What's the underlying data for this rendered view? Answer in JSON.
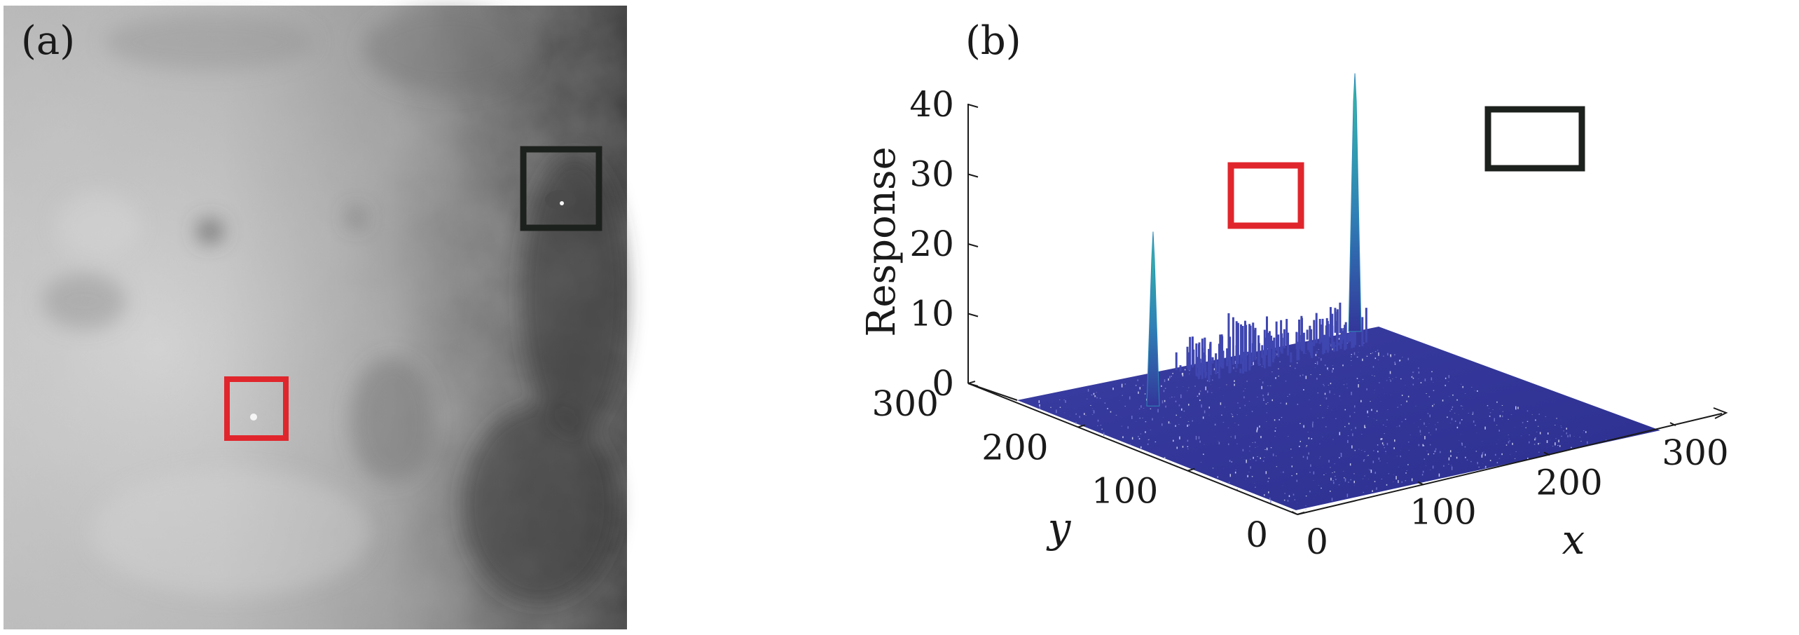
{
  "panels": {
    "a": {
      "label": "(a)"
    },
    "b": {
      "label": "(b)"
    }
  },
  "colors": {
    "red_box": "#e0262c",
    "black_box": "#1d211d",
    "surface": "#33369a",
    "peak": "#2fb5a6"
  },
  "chart_data": {
    "type": "surface",
    "title": "",
    "xlabel": "x",
    "ylabel": "y",
    "zlabel": "Response",
    "xlim": [
      0,
      300
    ],
    "ylim": [
      0,
      300
    ],
    "zlim": [
      0,
      40
    ],
    "x_ticks": [
      "0",
      "100",
      "200",
      "300"
    ],
    "y_ticks": [
      "0",
      "100",
      "200",
      "300"
    ],
    "z_ticks": [
      "0",
      "10",
      "20",
      "30",
      "40"
    ],
    "peaks": [
      {
        "marker": "red",
        "x": 64,
        "y": 205,
        "z": 25
      },
      {
        "marker": "black",
        "x": 258,
        "y": 244,
        "z": 37
      }
    ],
    "background_level": [
      0,
      3
    ],
    "grid": false
  }
}
